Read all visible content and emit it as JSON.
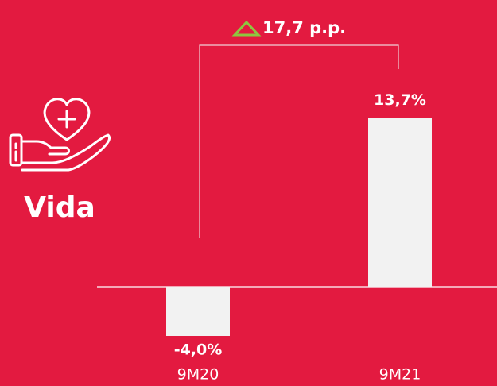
{
  "chart_data": {
    "type": "bar",
    "label": "Vida",
    "annotation": "17,7 p.p.",
    "categories": [
      "9M20",
      "9M21"
    ],
    "values": [
      -4.0,
      13.7
    ],
    "value_labels": [
      "-4,0%",
      "13,7%"
    ],
    "color": "#f2f2f2",
    "ylim": [
      -5,
      15
    ]
  }
}
